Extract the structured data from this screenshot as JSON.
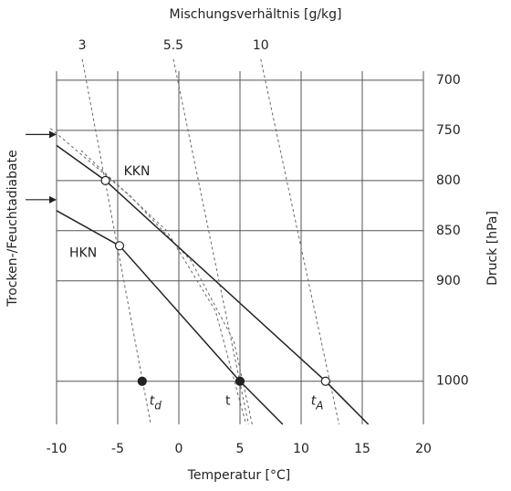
{
  "chart_data": {
    "type": "thermodynamic",
    "top_label": "Mischungsverhältnis [g/kg]",
    "xlabel": "Temperatur [°C]",
    "ylabel": "Druck [hPa]",
    "side_label": "Trocken-/Feuchtadiabate",
    "xlim": [
      -10,
      20
    ],
    "xticks": [
      -10,
      -5,
      0,
      5,
      10,
      15,
      20
    ],
    "ylim": [
      691,
      1043
    ],
    "yticks": [
      700,
      750,
      800,
      850,
      900,
      1000
    ],
    "grid": true,
    "dry_adiabats": [
      {
        "x": [
          -10,
          -6,
          12,
          15.5
        ],
        "y": [
          765,
          800,
          1000,
          1043
        ]
      },
      {
        "x": [
          -10,
          -4.85,
          5,
          8.5
        ],
        "y": [
          830,
          865,
          1000,
          1043
        ]
      }
    ],
    "moist_adiabats": [
      {
        "x": [
          -10.5,
          -4,
          1,
          4.5,
          6
        ],
        "y": [
          748,
          815,
          880,
          960,
          1043
        ]
      },
      {
        "x": [
          -8,
          -1,
          3,
          5.5
        ],
        "y": [
          770,
          850,
          930,
          1043
        ]
      }
    ],
    "mixing_ratio_lines": [
      {
        "name": "3",
        "x": [
          -7.9,
          -2.3
        ],
        "y": [
          679,
          1043
        ]
      },
      {
        "name": "5.5",
        "x": [
          -0.45,
          5.7
        ],
        "y": [
          679,
          1043
        ]
      },
      {
        "name": "10",
        "x": [
          6.7,
          13.1
        ],
        "y": [
          679,
          1043
        ]
      }
    ],
    "points": [
      {
        "label": "KKN",
        "x": -6,
        "y": 800,
        "filled": false
      },
      {
        "label": "HKN",
        "x": -4.85,
        "y": 865,
        "filled": false
      },
      {
        "label": "t",
        "subscript": "d",
        "x": -3,
        "y": 1000,
        "filled": true
      },
      {
        "label": "t",
        "x": 5,
        "y": 1000,
        "filled": true
      },
      {
        "label": "t",
        "subscript": "A",
        "x": 12,
        "y": 1000,
        "filled": false
      }
    ]
  }
}
